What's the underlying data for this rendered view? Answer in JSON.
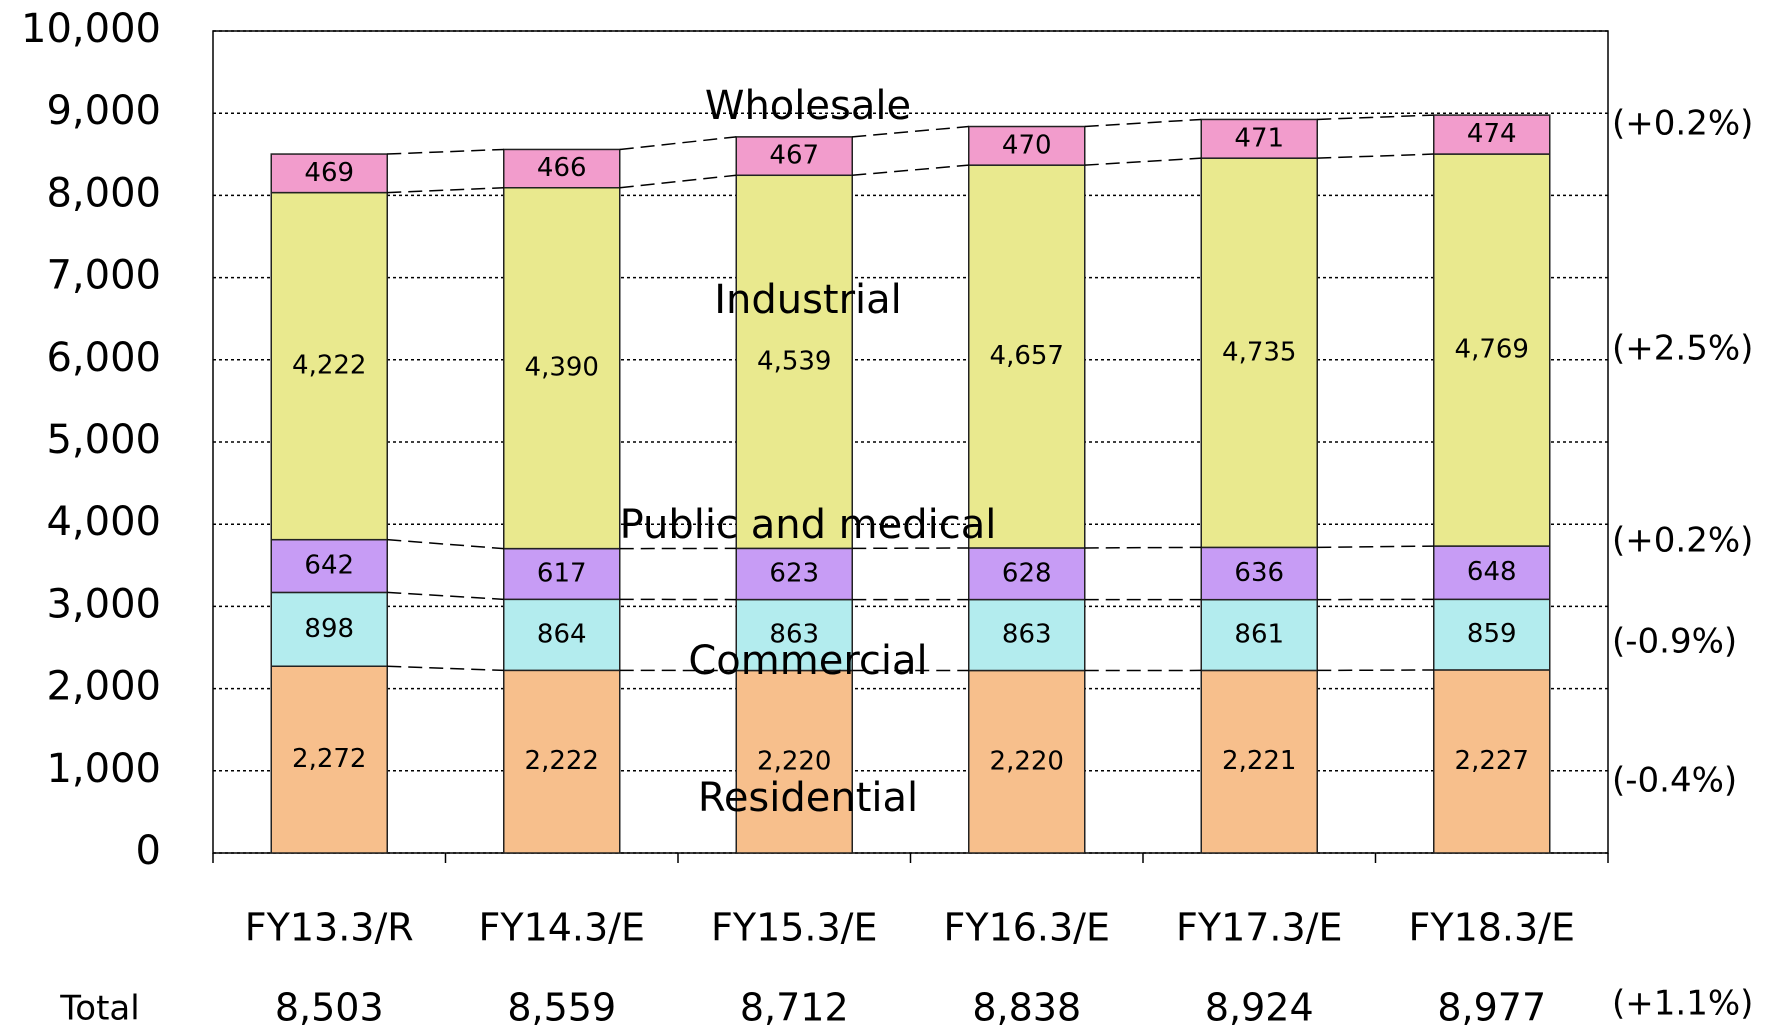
{
  "chart_data": {
    "type": "stacked_bar",
    "categories": [
      "FY13.3/R",
      "FY14.3/E",
      "FY15.3/E",
      "FY16.3/E",
      "FY17.3/E",
      "FY18.3/E"
    ],
    "series": [
      {
        "name": "Residential",
        "color": "#f7bf8c",
        "values": [
          2272,
          2222,
          2220,
          2220,
          2221,
          2227
        ],
        "value_labels": [
          "2,272",
          "2,222",
          "2,220",
          "2,220",
          "2,221",
          "2,227"
        ],
        "growth": "(-0.4%)"
      },
      {
        "name": "Commercial",
        "color": "#b3ecee",
        "values": [
          898,
          864,
          863,
          863,
          861,
          859
        ],
        "growth": "(-0.9%)"
      },
      {
        "name": "Public and medical",
        "color": "#c79cf5",
        "values": [
          642,
          617,
          623,
          628,
          636,
          648
        ],
        "growth": "(+0.2%)"
      },
      {
        "name": "Industrial",
        "color": "#e9e98e",
        "values": [
          4222,
          4390,
          4539,
          4657,
          4735,
          4769
        ],
        "value_labels": [
          "4,222",
          "4,390",
          "4,539",
          "4,657",
          "4,735",
          "4,769"
        ],
        "growth": "(+2.5%)"
      },
      {
        "name": "Wholesale",
        "color": "#f29ccc",
        "values": [
          469,
          466,
          467,
          470,
          471,
          474
        ],
        "growth": "(+0.2%)"
      }
    ],
    "total_label": "Total",
    "totals": [
      8503,
      8559,
      8712,
      8838,
      8924,
      8977
    ],
    "total_value_labels": [
      "8,503",
      "8,559",
      "8,712",
      "8,838",
      "8,924",
      "8,977"
    ],
    "total_growth": "(+1.1%)",
    "ylim": [
      0,
      10000
    ],
    "yticks": [
      0,
      {
        "value": 1000,
        "label": "1,000"
      },
      {
        "value": 2000,
        "label": "2,000"
      },
      {
        "value": 3000,
        "label": "3,000"
      },
      {
        "value": 4000,
        "label": "4,000"
      },
      {
        "value": 5000,
        "label": "5,000"
      },
      {
        "value": 6000,
        "label": "6,000"
      },
      {
        "value": 7000,
        "label": "7,000"
      },
      {
        "value": 8000,
        "label": "8,000"
      },
      {
        "value": 9000,
        "label": "9,000"
      },
      {
        "value": 10000,
        "label": "10,000"
      }
    ],
    "grid": true
  }
}
